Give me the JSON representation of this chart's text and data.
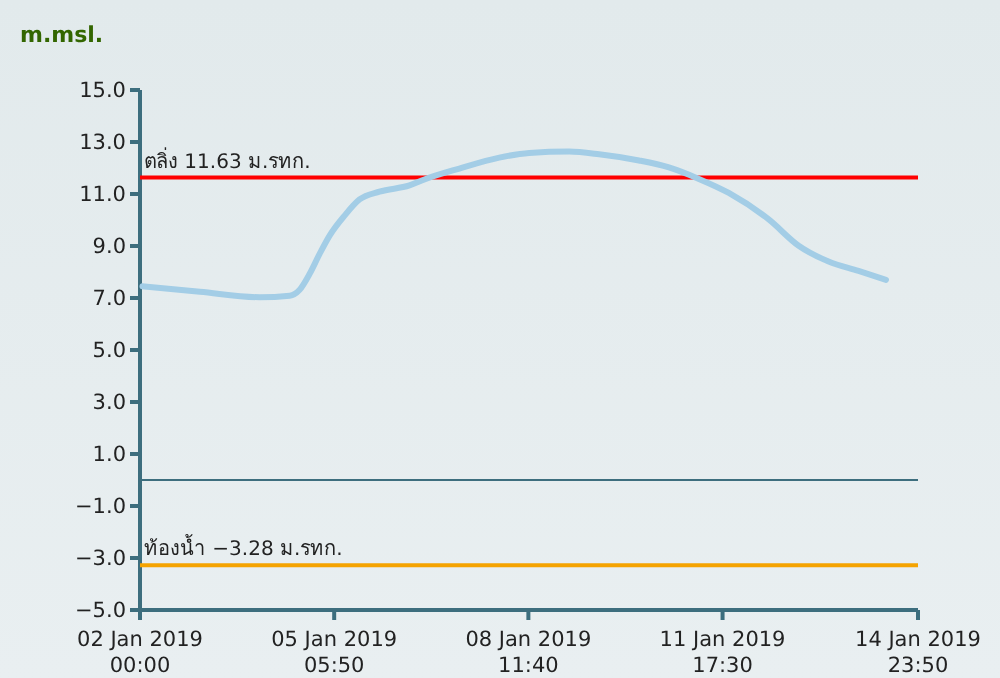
{
  "chart_data": {
    "type": "line",
    "ylabel": "m.msl.",
    "x": [
      "2019-01-02T01:00",
      "2019-01-03T00:00",
      "2019-01-04T00:00",
      "2019-01-04T12:00",
      "2019-01-04T16:00",
      "2019-01-04T20:00",
      "2019-01-05T00:00",
      "2019-01-05T04:00",
      "2019-01-05T10:00",
      "2019-01-05T16:00",
      "2019-01-06T00:00",
      "2019-01-06T12:00",
      "2019-01-06T18:00",
      "2019-01-07T08:00",
      "2019-01-08T00:00",
      "2019-01-08T12:00",
      "2019-01-09T04:00",
      "2019-01-09T16:00",
      "2019-01-10T08:00",
      "2019-01-10T20:00",
      "2019-01-11T08:00",
      "2019-01-11T20:00",
      "2019-01-12T12:00",
      "2019-01-13T00:00",
      "2019-01-13T12:00",
      "2019-01-14T00:00",
      "2019-01-14T11:00"
    ],
    "series": [
      {
        "color": "#a3cde6",
        "values": [
          7.45,
          7.24,
          7.03,
          7.09,
          7.32,
          7.93,
          8.7,
          9.4,
          10.17,
          10.79,
          11.09,
          11.33,
          11.56,
          11.98,
          12.4,
          12.58,
          12.63,
          12.53,
          12.29,
          12.02,
          11.58,
          11.04,
          10.02,
          9.01,
          8.4,
          8.04,
          7.7
        ]
      }
    ],
    "xlim": [
      "2019-01-02T00:00",
      "2019-01-14T23:50"
    ],
    "xticks": [
      {
        "value": "2019-01-02T00:00",
        "label": "02 Jan 2019\n00:00"
      },
      {
        "value": "2019-01-05T05:50",
        "label": "05 Jan 2019\n05:50"
      },
      {
        "value": "2019-01-08T11:40",
        "label": "08 Jan 2019\n11:40"
      },
      {
        "value": "2019-01-11T17:30",
        "label": "11 Jan 2019\n17:30"
      },
      {
        "value": "2019-01-14T23:50",
        "label": "14 Jan 2019\n23:50"
      }
    ],
    "ylim": [
      -5,
      15
    ],
    "yticks": [
      {
        "value": 15,
        "label": "15.0"
      },
      {
        "value": 13,
        "label": "13.0"
      },
      {
        "value": 11,
        "label": "11.0"
      },
      {
        "value": 9,
        "label": "9.0"
      },
      {
        "value": 7,
        "label": "7.0"
      },
      {
        "value": 5,
        "label": "5.0"
      },
      {
        "value": 3,
        "label": "3.0"
      },
      {
        "value": 1,
        "label": "1.0"
      },
      {
        "value": -1,
        "label": "−1.0"
      },
      {
        "value": -3,
        "label": "−3.0"
      },
      {
        "value": -5,
        "label": "−5.0"
      }
    ],
    "ref_lines": [
      {
        "axis": "y",
        "value": 11.63,
        "label": "ตลิ่ง 11.63 ม.รทก.",
        "color": "#ff0000"
      },
      {
        "axis": "y",
        "value": -3.28,
        "label": "ท้องน้ำ −3.28 ม.รทก.",
        "color": "#f5a300"
      },
      {
        "axis": "y",
        "value": 0,
        "label": null,
        "color": "#3d6e7e"
      }
    ],
    "grid": false,
    "marker": "none",
    "line_style": "solid"
  }
}
